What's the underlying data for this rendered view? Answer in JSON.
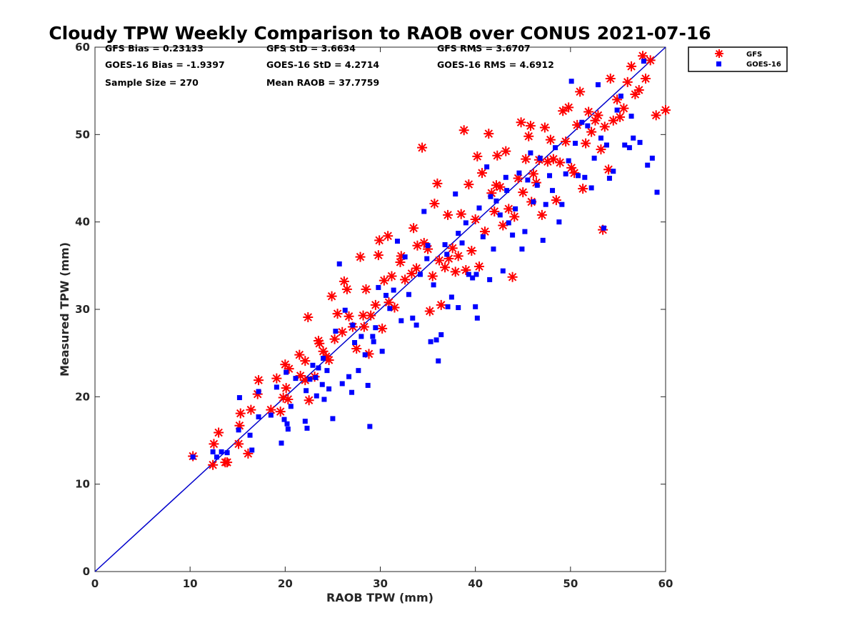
{
  "chart_data": {
    "type": "scatter",
    "title": "Cloudy TPW Weekly Comparison to RAOB over CONUS 2021-07-16",
    "xlabel": "RAOB TPW (mm)",
    "ylabel": "Measured TPW (mm)",
    "xlim": [
      0,
      60
    ],
    "ylim": [
      0,
      60
    ],
    "xticks": [
      "0",
      "10",
      "20",
      "30",
      "40",
      "50",
      "60"
    ],
    "yticks": [
      "0",
      "10",
      "20",
      "30",
      "40",
      "50",
      "60"
    ],
    "grid": false,
    "legend_position": "top-right, outside plot",
    "reference_line": "1:1 line",
    "stats": {
      "gfs_bias": "GFS Bias = 0.23133",
      "gfs_std": "GFS StD = 3.6634",
      "gfs_rms": "GFS RMS = 3.6707",
      "goes_bias": "GOES-16 Bias = -1.9397",
      "goes_std": "GOES-16 StD = 4.2714",
      "goes_rms": "GOES-16 RMS = 4.6912",
      "sample_size": "Sample Size = 270",
      "mean_raob": "Mean RAOB = 37.7759"
    },
    "series": [
      {
        "name": "GFS",
        "color": "#ff0000",
        "marker": "asterisk",
        "points": [
          [
            10.3,
            13.2
          ],
          [
            12.4,
            12.2
          ],
          [
            12.5,
            14.6
          ],
          [
            13.0,
            15.9
          ],
          [
            13.7,
            12.5
          ],
          [
            13.9,
            12.5
          ],
          [
            15.1,
            14.6
          ],
          [
            15.2,
            16.7
          ],
          [
            15.3,
            18.1
          ],
          [
            16.1,
            13.5
          ],
          [
            16.4,
            18.5
          ],
          [
            17.1,
            20.3
          ],
          [
            17.2,
            21.9
          ],
          [
            18.5,
            18.5
          ],
          [
            19.1,
            22.1
          ],
          [
            19.5,
            18.3
          ],
          [
            19.8,
            19.9
          ],
          [
            20.0,
            23.7
          ],
          [
            20.1,
            21.0
          ],
          [
            20.3,
            19.7
          ],
          [
            20.4,
            23.2
          ],
          [
            21.5,
            24.8
          ],
          [
            21.6,
            22.4
          ],
          [
            22.1,
            24.1
          ],
          [
            22.1,
            21.9
          ],
          [
            22.4,
            29.1
          ],
          [
            22.5,
            19.6
          ],
          [
            23.1,
            22.3
          ],
          [
            23.5,
            26.4
          ],
          [
            23.6,
            26.1
          ],
          [
            24.0,
            25.2
          ],
          [
            24.3,
            24.6
          ],
          [
            24.6,
            24.2
          ],
          [
            24.9,
            31.5
          ],
          [
            25.2,
            26.6
          ],
          [
            25.5,
            29.5
          ],
          [
            26.0,
            27.4
          ],
          [
            26.2,
            33.2
          ],
          [
            26.5,
            32.3
          ],
          [
            26.7,
            29.2
          ],
          [
            27.1,
            28.0
          ],
          [
            27.5,
            25.5
          ],
          [
            27.9,
            36.0
          ],
          [
            28.2,
            29.3
          ],
          [
            28.5,
            32.3
          ],
          [
            28.8,
            24.9
          ],
          [
            29.0,
            29.3
          ],
          [
            29.5,
            30.5
          ],
          [
            29.8,
            36.2
          ],
          [
            29.9,
            37.9
          ],
          [
            30.2,
            27.8
          ],
          [
            30.4,
            33.3
          ],
          [
            30.8,
            38.4
          ],
          [
            31.2,
            33.8
          ],
          [
            31.5,
            30.2
          ],
          [
            32.1,
            35.4
          ],
          [
            32.2,
            36.1
          ],
          [
            32.6,
            33.4
          ],
          [
            33.3,
            34.1
          ],
          [
            33.5,
            39.3
          ],
          [
            33.8,
            34.7
          ],
          [
            34.4,
            48.5
          ],
          [
            34.6,
            37.6
          ],
          [
            35.0,
            36.9
          ],
          [
            35.2,
            29.8
          ],
          [
            35.5,
            33.8
          ],
          [
            35.7,
            42.1
          ],
          [
            36.0,
            44.4
          ],
          [
            36.2,
            35.6
          ],
          [
            36.4,
            30.5
          ],
          [
            36.8,
            34.8
          ],
          [
            37.1,
            40.8
          ],
          [
            37.6,
            37.0
          ],
          [
            37.9,
            34.3
          ],
          [
            38.2,
            36.1
          ],
          [
            38.5,
            40.9
          ],
          [
            38.8,
            50.5
          ],
          [
            39.0,
            34.5
          ],
          [
            39.3,
            44.3
          ],
          [
            39.6,
            36.7
          ],
          [
            40.0,
            40.3
          ],
          [
            40.2,
            47.5
          ],
          [
            40.4,
            34.9
          ],
          [
            40.7,
            45.6
          ],
          [
            41.0,
            38.9
          ],
          [
            41.4,
            50.1
          ],
          [
            41.7,
            43.3
          ],
          [
            42.0,
            41.2
          ],
          [
            42.3,
            47.6
          ],
          [
            42.6,
            44.0
          ],
          [
            42.9,
            39.6
          ],
          [
            43.2,
            48.1
          ],
          [
            43.5,
            41.5
          ],
          [
            43.9,
            33.7
          ],
          [
            44.1,
            40.6
          ],
          [
            44.5,
            45.0
          ],
          [
            44.8,
            51.4
          ],
          [
            45.0,
            43.4
          ],
          [
            45.3,
            47.2
          ],
          [
            45.6,
            49.8
          ],
          [
            45.9,
            42.3
          ],
          [
            46.1,
            45.5
          ],
          [
            46.4,
            44.5
          ],
          [
            46.7,
            47.1
          ],
          [
            47.0,
            40.8
          ],
          [
            47.3,
            50.8
          ],
          [
            47.6,
            46.9
          ],
          [
            47.9,
            49.4
          ],
          [
            48.2,
            47.2
          ],
          [
            48.5,
            42.5
          ],
          [
            48.9,
            46.8
          ],
          [
            49.2,
            52.7
          ],
          [
            49.5,
            49.2
          ],
          [
            49.8,
            53.1
          ],
          [
            50.1,
            46.2
          ],
          [
            50.4,
            45.6
          ],
          [
            50.7,
            51.1
          ],
          [
            51.0,
            54.9
          ],
          [
            51.3,
            43.8
          ],
          [
            51.6,
            49.0
          ],
          [
            51.9,
            52.6
          ],
          [
            52.2,
            50.3
          ],
          [
            52.6,
            51.6
          ],
          [
            52.9,
            52.2
          ],
          [
            53.2,
            48.3
          ],
          [
            53.4,
            39.1
          ],
          [
            53.6,
            50.9
          ],
          [
            54.0,
            46.0
          ],
          [
            54.2,
            56.4
          ],
          [
            54.5,
            51.6
          ],
          [
            54.9,
            54.0
          ],
          [
            55.2,
            52.0
          ],
          [
            55.6,
            53.0
          ],
          [
            56.0,
            56.0
          ],
          [
            56.4,
            57.8
          ],
          [
            56.8,
            54.6
          ],
          [
            57.2,
            55.1
          ],
          [
            57.6,
            59.0
          ],
          [
            57.9,
            56.4
          ],
          [
            58.4,
            58.5
          ],
          [
            59.0,
            52.2
          ],
          [
            60.0,
            52.8
          ],
          [
            42.2,
            44.2
          ],
          [
            45.8,
            51.0
          ],
          [
            37.2,
            35.8
          ],
          [
            33.9,
            37.3
          ],
          [
            28.3,
            28.0
          ],
          [
            30.9,
            30.8
          ]
        ]
      },
      {
        "name": "GOES-16",
        "color": "#0000ff",
        "marker": "square",
        "points": [
          [
            10.3,
            13.1
          ],
          [
            12.4,
            13.7
          ],
          [
            12.8,
            13.1
          ],
          [
            13.3,
            13.7
          ],
          [
            13.9,
            13.6
          ],
          [
            15.1,
            16.2
          ],
          [
            15.2,
            19.9
          ],
          [
            16.3,
            15.6
          ],
          [
            16.5,
            13.9
          ],
          [
            17.2,
            20.6
          ],
          [
            17.2,
            17.7
          ],
          [
            18.5,
            17.9
          ],
          [
            19.1,
            21.1
          ],
          [
            19.6,
            14.7
          ],
          [
            19.9,
            17.4
          ],
          [
            20.1,
            22.8
          ],
          [
            20.2,
            16.9
          ],
          [
            20.3,
            16.3
          ],
          [
            20.6,
            18.9
          ],
          [
            21.1,
            22.1
          ],
          [
            22.1,
            17.2
          ],
          [
            22.2,
            20.7
          ],
          [
            22.3,
            16.4
          ],
          [
            22.6,
            22.0
          ],
          [
            23.2,
            22.2
          ],
          [
            23.3,
            20.1
          ],
          [
            23.5,
            23.3
          ],
          [
            23.9,
            21.4
          ],
          [
            24.1,
            19.7
          ],
          [
            24.4,
            23.0
          ],
          [
            24.6,
            20.9
          ],
          [
            25.0,
            17.5
          ],
          [
            25.3,
            27.5
          ],
          [
            25.7,
            35.2
          ],
          [
            26.0,
            21.5
          ],
          [
            26.3,
            29.9
          ],
          [
            26.7,
            22.3
          ],
          [
            27.0,
            20.5
          ],
          [
            27.3,
            26.2
          ],
          [
            27.7,
            23.0
          ],
          [
            28.0,
            26.9
          ],
          [
            28.4,
            24.8
          ],
          [
            28.7,
            21.3
          ],
          [
            28.9,
            16.6
          ],
          [
            29.3,
            26.3
          ],
          [
            29.5,
            27.9
          ],
          [
            29.8,
            32.5
          ],
          [
            30.2,
            25.2
          ],
          [
            30.6,
            31.6
          ],
          [
            31.0,
            30.1
          ],
          [
            31.4,
            32.2
          ],
          [
            31.8,
            37.8
          ],
          [
            32.2,
            28.7
          ],
          [
            32.6,
            36.0
          ],
          [
            33.0,
            31.7
          ],
          [
            33.4,
            29.0
          ],
          [
            33.8,
            28.2
          ],
          [
            34.2,
            34.0
          ],
          [
            34.6,
            41.2
          ],
          [
            34.9,
            35.8
          ],
          [
            35.3,
            26.3
          ],
          [
            35.6,
            32.8
          ],
          [
            35.9,
            26.5
          ],
          [
            36.1,
            24.1
          ],
          [
            36.4,
            27.1
          ],
          [
            36.8,
            37.4
          ],
          [
            37.1,
            30.3
          ],
          [
            37.5,
            31.4
          ],
          [
            37.9,
            43.2
          ],
          [
            38.2,
            30.2
          ],
          [
            38.6,
            37.6
          ],
          [
            39.0,
            39.9
          ],
          [
            39.3,
            34.0
          ],
          [
            39.7,
            33.6
          ],
          [
            40.0,
            30.3
          ],
          [
            40.2,
            29.0
          ],
          [
            40.4,
            41.6
          ],
          [
            40.8,
            38.3
          ],
          [
            41.2,
            46.3
          ],
          [
            41.5,
            33.4
          ],
          [
            41.9,
            36.9
          ],
          [
            42.2,
            42.4
          ],
          [
            42.6,
            40.8
          ],
          [
            42.9,
            34.4
          ],
          [
            43.2,
            45.1
          ],
          [
            43.5,
            39.9
          ],
          [
            43.9,
            38.5
          ],
          [
            44.2,
            41.5
          ],
          [
            44.6,
            45.6
          ],
          [
            44.9,
            36.9
          ],
          [
            45.2,
            38.9
          ],
          [
            45.5,
            44.8
          ],
          [
            45.8,
            47.9
          ],
          [
            46.1,
            42.3
          ],
          [
            46.5,
            44.2
          ],
          [
            46.8,
            47.3
          ],
          [
            47.1,
            37.9
          ],
          [
            47.4,
            42.0
          ],
          [
            47.8,
            45.3
          ],
          [
            48.1,
            43.6
          ],
          [
            48.4,
            48.5
          ],
          [
            48.8,
            40.0
          ],
          [
            49.1,
            42.0
          ],
          [
            49.5,
            45.5
          ],
          [
            49.8,
            47.0
          ],
          [
            50.1,
            56.1
          ],
          [
            50.5,
            49.0
          ],
          [
            50.8,
            45.3
          ],
          [
            51.2,
            51.4
          ],
          [
            51.5,
            45.1
          ],
          [
            51.8,
            51.0
          ],
          [
            52.2,
            43.9
          ],
          [
            52.5,
            47.3
          ],
          [
            52.9,
            55.7
          ],
          [
            53.2,
            49.6
          ],
          [
            53.5,
            39.3
          ],
          [
            53.8,
            48.8
          ],
          [
            54.1,
            45.0
          ],
          [
            54.5,
            45.8
          ],
          [
            54.9,
            52.8
          ],
          [
            55.3,
            54.4
          ],
          [
            55.7,
            48.8
          ],
          [
            56.2,
            48.5
          ],
          [
            56.4,
            52.1
          ],
          [
            56.6,
            49.6
          ],
          [
            57.3,
            49.1
          ],
          [
            57.7,
            58.4
          ],
          [
            58.1,
            46.5
          ],
          [
            58.6,
            47.3
          ],
          [
            59.1,
            43.4
          ],
          [
            40.1,
            34.0
          ],
          [
            41.6,
            42.9
          ],
          [
            43.3,
            43.6
          ],
          [
            35.0,
            37.3
          ],
          [
            37.0,
            36.3
          ],
          [
            29.2,
            26.9
          ],
          [
            27.1,
            28.2
          ],
          [
            24.0,
            24.4
          ],
          [
            22.9,
            23.6
          ],
          [
            38.2,
            38.7
          ]
        ]
      }
    ]
  }
}
